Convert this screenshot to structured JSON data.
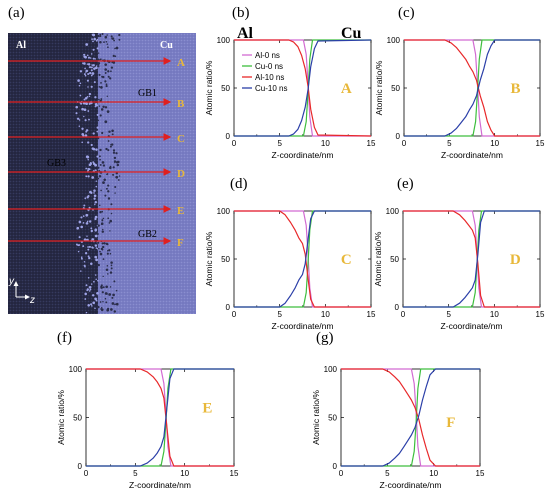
{
  "figure_labels": {
    "a": "(a)",
    "b": "(b)",
    "c": "(c)",
    "d": "(d)",
    "e": "(e)",
    "f": "(f)",
    "g": "(g)"
  },
  "simulation_panel": {
    "left_material": "Al",
    "right_material": "Cu",
    "line_letters": [
      "A",
      "B",
      "C",
      "D",
      "E",
      "F"
    ],
    "gb_labels": [
      "GB1",
      "GB3",
      "GB2"
    ],
    "axis_y": "y",
    "axis_z": "z",
    "colors": {
      "al_region": "#23253F",
      "cu_region": "#7478BF",
      "lines": "#E02020",
      "letters": "#E8B83A",
      "gb_labels": "#000000",
      "material_labels": "#FFFFFF"
    }
  },
  "chart_data": [
    {
      "type": "line",
      "panel": "b",
      "letter": "A",
      "xlabel": "Z-coordinate/nm",
      "ylabel": "Atomic ratio/%",
      "xlim": [
        0,
        15
      ],
      "ylim": [
        0,
        100
      ],
      "xticks": [
        "0",
        "5",
        "10",
        "15"
      ],
      "yticks": [
        "0",
        "50",
        "100"
      ],
      "top_labels": [
        "Al",
        "Cu"
      ],
      "legend": [
        "Al-0 ns",
        "Cu-0 ns",
        "Al-10 ns",
        "Cu-10 ns"
      ],
      "series": [
        {
          "name": "Al-0 ns",
          "color": "#D26BD2",
          "x": [
            0,
            7.6,
            7.9,
            8.1,
            8.3,
            8.6,
            15
          ],
          "y": [
            100,
            100,
            85,
            55,
            20,
            0,
            0
          ]
        },
        {
          "name": "Cu-0 ns",
          "color": "#3DBE3D",
          "x": [
            0,
            7.6,
            7.9,
            8.1,
            8.3,
            8.6,
            15
          ],
          "y": [
            0,
            0,
            15,
            45,
            80,
            100,
            100
          ]
        },
        {
          "name": "Al-10 ns",
          "color": "#E8282A",
          "x": [
            0,
            6.0,
            6.5,
            7.0,
            7.4,
            7.8,
            8.1,
            8.4,
            8.8,
            9.2,
            15
          ],
          "y": [
            100,
            100,
            98,
            93,
            84,
            70,
            52,
            28,
            9,
            1,
            0
          ]
        },
        {
          "name": "Cu-10 ns",
          "color": "#2B3FA8",
          "x": [
            0,
            6.0,
            6.5,
            7.0,
            7.4,
            7.8,
            8.1,
            8.4,
            8.8,
            9.2,
            15
          ],
          "y": [
            0,
            0,
            2,
            7,
            16,
            30,
            48,
            72,
            91,
            99,
            100
          ]
        }
      ]
    },
    {
      "type": "line",
      "panel": "c",
      "letter": "B",
      "xlabel": "Z-coordinate/nm",
      "ylabel": "Atomic ratio/%",
      "xlim": [
        0,
        15
      ],
      "ylim": [
        0,
        100
      ],
      "xticks": [
        "0",
        "5",
        "10",
        "15"
      ],
      "yticks": [
        "0",
        "50",
        "100"
      ],
      "series": [
        {
          "name": "Al-0 ns",
          "color": "#D26BD2",
          "x": [
            0,
            7.6,
            7.9,
            8.1,
            8.3,
            8.6,
            15
          ],
          "y": [
            100,
            100,
            85,
            55,
            20,
            0,
            0
          ]
        },
        {
          "name": "Cu-0 ns",
          "color": "#3DBE3D",
          "x": [
            0,
            7.6,
            7.9,
            8.1,
            8.3,
            8.6,
            15
          ],
          "y": [
            0,
            0,
            15,
            45,
            80,
            100,
            100
          ]
        },
        {
          "name": "Al-10 ns",
          "color": "#E8282A",
          "x": [
            0,
            4.5,
            5.2,
            5.8,
            6.3,
            6.8,
            7.2,
            7.6,
            8.0,
            8.4,
            8.8,
            9.2,
            9.6,
            10.0,
            15
          ],
          "y": [
            100,
            100,
            97,
            92,
            86,
            80,
            73,
            67,
            58,
            42,
            30,
            15,
            6,
            0,
            0
          ]
        },
        {
          "name": "Cu-10 ns",
          "color": "#2B3FA8",
          "x": [
            0,
            4.5,
            5.2,
            5.8,
            6.3,
            6.8,
            7.2,
            7.6,
            8.0,
            8.4,
            8.8,
            9.2,
            9.6,
            10.0,
            15
          ],
          "y": [
            0,
            0,
            3,
            8,
            14,
            20,
            27,
            33,
            42,
            58,
            70,
            85,
            94,
            100,
            100
          ]
        }
      ]
    },
    {
      "type": "line",
      "panel": "d",
      "letter": "C",
      "xlabel": "Z-coordinate/nm",
      "ylabel": "Atomic ratio/%",
      "xlim": [
        0,
        15
      ],
      "ylim": [
        0,
        100
      ],
      "xticks": [
        "0",
        "5",
        "10",
        "15"
      ],
      "yticks": [
        "0",
        "50",
        "100"
      ],
      "series": [
        {
          "name": "Al-0 ns",
          "color": "#D26BD2",
          "x": [
            0,
            7.6,
            7.9,
            8.1,
            8.3,
            8.6,
            15
          ],
          "y": [
            100,
            100,
            85,
            55,
            20,
            0,
            0
          ]
        },
        {
          "name": "Cu-0 ns",
          "color": "#3DBE3D",
          "x": [
            0,
            7.6,
            7.9,
            8.1,
            8.3,
            8.6,
            15
          ],
          "y": [
            0,
            0,
            15,
            45,
            80,
            100,
            100
          ]
        },
        {
          "name": "Al-10 ns",
          "color": "#E8282A",
          "x": [
            0,
            5.0,
            5.6,
            6.2,
            6.7,
            7.1,
            7.5,
            7.8,
            8.1,
            8.4,
            8.8,
            15
          ],
          "y": [
            100,
            100,
            96,
            88,
            80,
            72,
            66,
            55,
            30,
            8,
            0,
            0
          ]
        },
        {
          "name": "Cu-10 ns",
          "color": "#2B3FA8",
          "x": [
            0,
            5.0,
            5.6,
            6.2,
            6.7,
            7.1,
            7.5,
            7.8,
            8.1,
            8.4,
            8.8,
            15
          ],
          "y": [
            0,
            0,
            4,
            12,
            20,
            28,
            34,
            45,
            70,
            92,
            100,
            100
          ]
        }
      ]
    },
    {
      "type": "line",
      "panel": "e",
      "letter": "D",
      "xlabel": "Z-coordinate/nm",
      "ylabel": "Atomic ratio/%",
      "xlim": [
        0,
        15
      ],
      "ylim": [
        0,
        100
      ],
      "xticks": [
        "0",
        "5",
        "10",
        "15"
      ],
      "yticks": [
        "0",
        "50",
        "100"
      ],
      "series": [
        {
          "name": "Al-0 ns",
          "color": "#D26BD2",
          "x": [
            0,
            7.6,
            7.9,
            8.1,
            8.3,
            8.6,
            15
          ],
          "y": [
            100,
            100,
            85,
            55,
            20,
            0,
            0
          ]
        },
        {
          "name": "Cu-0 ns",
          "color": "#3DBE3D",
          "x": [
            0,
            7.6,
            7.9,
            8.1,
            8.3,
            8.6,
            15
          ],
          "y": [
            0,
            0,
            15,
            45,
            80,
            100,
            100
          ]
        },
        {
          "name": "Al-10 ns",
          "color": "#E8282A",
          "x": [
            0,
            5.5,
            6.2,
            6.8,
            7.2,
            7.6,
            7.9,
            8.2,
            8.5,
            8.9,
            15
          ],
          "y": [
            100,
            100,
            96,
            90,
            85,
            80,
            72,
            45,
            12,
            0,
            0
          ]
        },
        {
          "name": "Cu-10 ns",
          "color": "#2B3FA8",
          "x": [
            0,
            5.5,
            6.2,
            6.8,
            7.2,
            7.6,
            7.9,
            8.2,
            8.5,
            8.9,
            15
          ],
          "y": [
            0,
            0,
            4,
            10,
            15,
            20,
            28,
            55,
            88,
            100,
            100
          ]
        }
      ]
    },
    {
      "type": "line",
      "panel": "f",
      "letter": "E",
      "xlabel": "Z-coordinate/nm",
      "ylabel": "Atomic ratio/%",
      "xlim": [
        0,
        15
      ],
      "ylim": [
        0,
        100
      ],
      "xticks": [
        "0",
        "5",
        "10",
        "15"
      ],
      "yticks": [
        "0",
        "50",
        "100"
      ],
      "series": [
        {
          "name": "Al-0 ns",
          "color": "#D26BD2",
          "x": [
            0,
            7.6,
            7.9,
            8.1,
            8.3,
            8.6,
            15
          ],
          "y": [
            100,
            100,
            85,
            55,
            20,
            0,
            0
          ]
        },
        {
          "name": "Cu-0 ns",
          "color": "#3DBE3D",
          "x": [
            0,
            7.6,
            7.9,
            8.1,
            8.3,
            8.6,
            15
          ],
          "y": [
            0,
            0,
            15,
            45,
            80,
            100,
            100
          ]
        },
        {
          "name": "Al-10 ns",
          "color": "#E8282A",
          "x": [
            0,
            5.5,
            6.2,
            6.8,
            7.2,
            7.6,
            7.9,
            8.2,
            8.5,
            8.9,
            15
          ],
          "y": [
            100,
            100,
            97,
            92,
            87,
            80,
            70,
            40,
            10,
            0,
            0
          ]
        },
        {
          "name": "Cu-10 ns",
          "color": "#2B3FA8",
          "x": [
            0,
            5.5,
            6.2,
            6.8,
            7.2,
            7.6,
            7.9,
            8.2,
            8.5,
            8.9,
            15
          ],
          "y": [
            0,
            0,
            3,
            8,
            13,
            20,
            30,
            60,
            90,
            100,
            100
          ]
        }
      ]
    },
    {
      "type": "line",
      "panel": "g",
      "letter": "F",
      "xlabel": "Z-coordinate/nm",
      "ylabel": "Atomic ratio/%",
      "xlim": [
        0,
        15
      ],
      "ylim": [
        0,
        100
      ],
      "xticks": [
        "0",
        "5",
        "10",
        "15"
      ],
      "yticks": [
        "0",
        "50",
        "100"
      ],
      "series": [
        {
          "name": "Al-0 ns",
          "color": "#D26BD2",
          "x": [
            0,
            7.6,
            7.9,
            8.1,
            8.3,
            8.6,
            15
          ],
          "y": [
            100,
            100,
            85,
            55,
            20,
            0,
            0
          ]
        },
        {
          "name": "Cu-0 ns",
          "color": "#3DBE3D",
          "x": [
            0,
            7.6,
            7.9,
            8.1,
            8.3,
            8.6,
            15
          ],
          "y": [
            0,
            0,
            15,
            45,
            80,
            100,
            100
          ]
        },
        {
          "name": "Al-10 ns",
          "color": "#E8282A",
          "x": [
            0,
            4.5,
            5.2,
            5.8,
            6.3,
            6.8,
            7.2,
            7.6,
            8.0,
            8.4,
            8.8,
            9.2,
            9.6,
            10.2,
            15
          ],
          "y": [
            100,
            100,
            97,
            92,
            87,
            80,
            74,
            68,
            60,
            48,
            32,
            18,
            6,
            0,
            0
          ]
        },
        {
          "name": "Cu-10 ns",
          "color": "#2B3FA8",
          "x": [
            0,
            4.5,
            5.2,
            5.8,
            6.3,
            6.8,
            7.2,
            7.6,
            8.0,
            8.4,
            8.8,
            9.2,
            9.6,
            10.2,
            15
          ],
          "y": [
            0,
            0,
            3,
            8,
            13,
            20,
            26,
            32,
            40,
            52,
            68,
            82,
            94,
            100,
            100
          ]
        }
      ]
    }
  ]
}
